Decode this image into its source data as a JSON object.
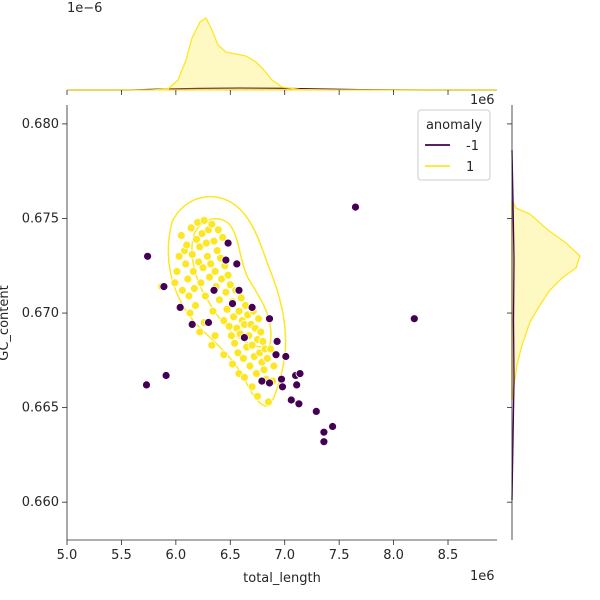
{
  "chart_data": {
    "type": "scatter",
    "subtype": "jointplot-with-kde",
    "xlabel": "total_length",
    "ylabel": "GC_content",
    "x_offset_text": "1e6",
    "y_offset_text": "1e6",
    "top_marginal_offset_text": "1e−6",
    "xlim": [
      5000000,
      8950000
    ],
    "ylim": [
      0.658,
      0.681
    ],
    "x_ticks": [
      5000000,
      5500000,
      6000000,
      6500000,
      7000000,
      7500000,
      8000000,
      8500000
    ],
    "x_tick_labels": [
      "5.0",
      "5.5",
      "6.0",
      "6.5",
      "7.0",
      "7.5",
      "8.0",
      "8.5"
    ],
    "y_ticks": [
      0.66,
      0.665,
      0.67,
      0.675,
      0.68
    ],
    "y_tick_labels": [
      "0.660",
      "0.665",
      "0.670",
      "0.675",
      "0.680"
    ],
    "grid": false,
    "legend": {
      "title": "anomaly",
      "placement": "top-right",
      "entries": [
        {
          "label": "-1",
          "color": "#440154"
        },
        {
          "label": "1",
          "color": "#fde725"
        }
      ]
    },
    "series": [
      {
        "name": "-1",
        "color": "#440154",
        "points": [
          [
            5740000,
            0.673
          ],
          [
            5730000,
            0.6662
          ],
          [
            5890000,
            0.6714
          ],
          [
            5910000,
            0.6667
          ],
          [
            6040000,
            0.6703
          ],
          [
            6150000,
            0.6694
          ],
          [
            6300000,
            0.6695
          ],
          [
            6350000,
            0.6712
          ],
          [
            6460000,
            0.6728
          ],
          [
            6480000,
            0.6737
          ],
          [
            6520000,
            0.6705
          ],
          [
            6560000,
            0.6726
          ],
          [
            6580000,
            0.6712
          ],
          [
            6630000,
            0.6687
          ],
          [
            6700000,
            0.6703
          ],
          [
            6790000,
            0.6664
          ],
          [
            6860000,
            0.6663
          ],
          [
            6860000,
            0.6697
          ],
          [
            6920000,
            0.6678
          ],
          [
            6930000,
            0.6685
          ],
          [
            6970000,
            0.6665
          ],
          [
            6980000,
            0.6661
          ],
          [
            7010000,
            0.6677
          ],
          [
            7060000,
            0.6654
          ],
          [
            7100000,
            0.6667
          ],
          [
            7110000,
            0.6662
          ],
          [
            7130000,
            0.6652
          ],
          [
            7140000,
            0.6668
          ],
          [
            7290000,
            0.6648
          ],
          [
            7360000,
            0.6637
          ],
          [
            7360000,
            0.6632
          ],
          [
            7440000,
            0.664
          ],
          [
            7650000,
            0.6756
          ],
          [
            8190000,
            0.6697
          ]
        ]
      },
      {
        "name": "1",
        "color": "#fde725",
        "points": [
          [
            6050000,
            0.6741
          ],
          [
            6080000,
            0.6733
          ],
          [
            6090000,
            0.6726
          ],
          [
            6110000,
            0.6718
          ],
          [
            6120000,
            0.6709
          ],
          [
            6140000,
            0.6745
          ],
          [
            6150000,
            0.6731
          ],
          [
            6160000,
            0.6722
          ],
          [
            6170000,
            0.6713
          ],
          [
            6180000,
            0.6704
          ],
          [
            6190000,
            0.6739
          ],
          [
            6200000,
            0.6748
          ],
          [
            6210000,
            0.6727
          ],
          [
            6220000,
            0.6735
          ],
          [
            6230000,
            0.6716
          ],
          [
            6240000,
            0.6742
          ],
          [
            6250000,
            0.6724
          ],
          [
            6260000,
            0.6749
          ],
          [
            6270000,
            0.6709
          ],
          [
            6280000,
            0.6737
          ],
          [
            6290000,
            0.673
          ],
          [
            6300000,
            0.6744
          ],
          [
            6310000,
            0.6719
          ],
          [
            6320000,
            0.6726
          ],
          [
            6330000,
            0.6747
          ],
          [
            6340000,
            0.6701
          ],
          [
            6350000,
            0.6738
          ],
          [
            6360000,
            0.6722
          ],
          [
            6370000,
            0.6714
          ],
          [
            6380000,
            0.6733
          ],
          [
            6390000,
            0.6744
          ],
          [
            6400000,
            0.6707
          ],
          [
            6410000,
            0.6729
          ],
          [
            6420000,
            0.6718
          ],
          [
            6430000,
            0.674
          ],
          [
            6440000,
            0.6696
          ],
          [
            6450000,
            0.6725
          ],
          [
            6460000,
            0.6711
          ],
          [
            6470000,
            0.6702
          ],
          [
            6480000,
            0.672
          ],
          [
            6490000,
            0.6693
          ],
          [
            6500000,
            0.6715
          ],
          [
            6510000,
            0.6688
          ],
          [
            6520000,
            0.6706
          ],
          [
            6530000,
            0.6698
          ],
          [
            6540000,
            0.6684
          ],
          [
            6550000,
            0.6712
          ],
          [
            6560000,
            0.6692
          ],
          [
            6570000,
            0.6679
          ],
          [
            6580000,
            0.6701
          ],
          [
            6590000,
            0.6689
          ],
          [
            6600000,
            0.6708
          ],
          [
            6610000,
            0.6696
          ],
          [
            6620000,
            0.6676
          ],
          [
            6630000,
            0.6694
          ],
          [
            6640000,
            0.6704
          ],
          [
            6650000,
            0.6682
          ],
          [
            6660000,
            0.6699
          ],
          [
            6670000,
            0.6688
          ],
          [
            6680000,
            0.6672
          ],
          [
            6690000,
            0.6694
          ],
          [
            6700000,
            0.6683
          ],
          [
            6710000,
            0.6701
          ],
          [
            6720000,
            0.6677
          ],
          [
            6730000,
            0.6692
          ],
          [
            6740000,
            0.6668
          ],
          [
            6750000,
            0.6686
          ],
          [
            6760000,
            0.6697
          ],
          [
            6770000,
            0.6679
          ],
          [
            6780000,
            0.669
          ],
          [
            6790000,
            0.6674
          ],
          [
            6800000,
            0.6685
          ],
          [
            6810000,
            0.667
          ],
          [
            6820000,
            0.6681
          ],
          [
            6830000,
            0.6665
          ],
          [
            6840000,
            0.6676
          ],
          [
            6850000,
            0.6653
          ],
          [
            6870000,
            0.6681
          ],
          [
            6890000,
            0.6664
          ],
          [
            6900000,
            0.6672
          ],
          [
            5990000,
            0.6716
          ],
          [
            6010000,
            0.6722
          ],
          [
            6030000,
            0.673
          ],
          [
            6060000,
            0.6712
          ],
          [
            6100000,
            0.6736
          ],
          [
            6130000,
            0.67
          ],
          [
            6220000,
            0.669
          ],
          [
            6260000,
            0.6695
          ],
          [
            6330000,
            0.6683
          ],
          [
            6360000,
            0.6688
          ],
          [
            6440000,
            0.6678
          ],
          [
            6520000,
            0.6673
          ],
          [
            6580000,
            0.6668
          ],
          [
            6630000,
            0.6666
          ],
          [
            6700000,
            0.6661
          ],
          [
            6750000,
            0.6656
          ],
          [
            5870000,
            0.6714
          ]
        ]
      }
    ]
  }
}
